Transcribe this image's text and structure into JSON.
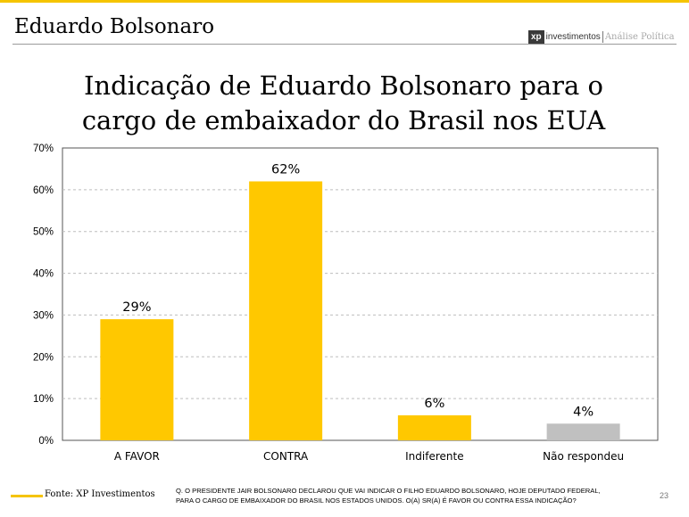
{
  "header": {
    "title": "Eduardo Bolsonaro"
  },
  "logo": {
    "mark": "xp",
    "brand": "investimentos",
    "sub": "Análise Política"
  },
  "footer": {
    "source": "Fonte: XP Investimentos",
    "question_line1": "Q. O PRESIDENTE JAIR BOLSONARO DECLAROU QUE VAI INDICAR O FILHO EDUARDO BOLSONARO, HOJE DEPUTADO FEDERAL,",
    "question_line2": "PARA O CARGO DE EMBAIXADOR DO BRASIL NOS ESTADOS UNIDOS. O(A) SR(A) É FAVOR OU CONTRA ESSA INDICAÇÃO?",
    "page": "23"
  },
  "colors": {
    "accent": "#f5c400",
    "bar_primary": "#ffc800",
    "bar_secondary": "#c0c0c0",
    "grid": "#bdbdbd",
    "axis": "#555555"
  },
  "chart_data": {
    "type": "bar",
    "title_line1": "Indicação de Eduardo Bolsonaro para o",
    "title_line2": "cargo de embaixador do Brasil nos EUA",
    "categories": [
      "A FAVOR",
      "CONTRA",
      "Indiferente",
      "Não respondeu"
    ],
    "values": [
      29,
      62,
      6,
      4
    ],
    "value_labels": [
      "29%",
      "62%",
      "6%",
      "4%"
    ],
    "bar_colors": [
      "#ffc800",
      "#ffc800",
      "#ffc800",
      "#c0c0c0"
    ],
    "ylim": [
      0,
      70
    ],
    "yticks": [
      0,
      10,
      20,
      30,
      40,
      50,
      60,
      70
    ],
    "ytick_labels": [
      "0%",
      "10%",
      "20%",
      "30%",
      "40%",
      "50%",
      "60%",
      "70%"
    ],
    "grid": true,
    "grid_style": "dashed",
    "legend": "none"
  }
}
